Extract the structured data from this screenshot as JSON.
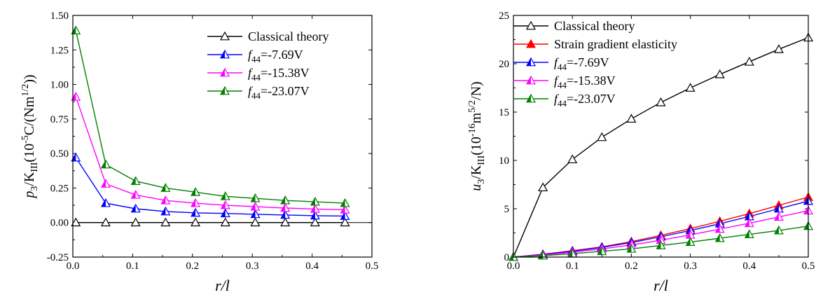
{
  "chart_data": [
    {
      "type": "line",
      "xlabel": "r/l",
      "ylabel": "p3/KIII(10-5C/(Nm1/2))",
      "xlim": [
        0.0,
        0.5
      ],
      "ylim": [
        -0.25,
        1.5
      ],
      "xticks": [
        "0.0",
        "0.1",
        "0.2",
        "0.3",
        "0.4",
        "0.5"
      ],
      "yticks": [
        "-0.25",
        "0.00",
        "0.25",
        "0.50",
        "0.75",
        "1.00",
        "1.25",
        "1.50"
      ],
      "legend_position": "top-right",
      "series": [
        {
          "name": "Classical theory",
          "color": "#000000",
          "marker": "hollow-triangle",
          "x": [
            0.005,
            0.055,
            0.105,
            0.155,
            0.205,
            0.255,
            0.305,
            0.355,
            0.405,
            0.455
          ],
          "y": [
            0.0,
            0.0,
            0.0,
            0.0,
            0.0,
            0.0,
            0.0,
            0.0,
            0.0,
            0.0
          ]
        },
        {
          "name": "f44=-7.69V",
          "color": "#0000ff",
          "marker": "half-filled-triangle",
          "x": [
            0.005,
            0.055,
            0.105,
            0.155,
            0.205,
            0.255,
            0.305,
            0.355,
            0.405,
            0.455
          ],
          "y": [
            0.47,
            0.14,
            0.1,
            0.08,
            0.07,
            0.066,
            0.06,
            0.055,
            0.05,
            0.047
          ]
        },
        {
          "name": "f44=-15.38V",
          "color": "#ff00ff",
          "marker": "half-filled-triangle",
          "x": [
            0.005,
            0.055,
            0.105,
            0.155,
            0.205,
            0.255,
            0.305,
            0.355,
            0.405,
            0.455
          ],
          "y": [
            0.91,
            0.28,
            0.2,
            0.16,
            0.14,
            0.125,
            0.115,
            0.105,
            0.098,
            0.093
          ]
        },
        {
          "name": "f44=-23.07V",
          "color": "#008000",
          "marker": "half-filled-triangle",
          "x": [
            0.005,
            0.055,
            0.105,
            0.155,
            0.205,
            0.255,
            0.305,
            0.355,
            0.405,
            0.455
          ],
          "y": [
            1.39,
            0.42,
            0.3,
            0.25,
            0.22,
            0.19,
            0.175,
            0.16,
            0.15,
            0.14
          ]
        }
      ]
    },
    {
      "type": "line",
      "xlabel": "r/l",
      "ylabel": "u3/KIII(10-16m5/2/N)",
      "xlim": [
        0.0,
        0.5
      ],
      "ylim": [
        0,
        25
      ],
      "xticks": [
        "0.0",
        "0.1",
        "0.2",
        "0.3",
        "0.4",
        "0.5"
      ],
      "yticks": [
        "0",
        "5",
        "10",
        "15",
        "20",
        "25"
      ],
      "legend_position": "top-left",
      "series": [
        {
          "name": "Classical theory",
          "color": "#000000",
          "marker": "hollow-triangle",
          "x": [
            0.0,
            0.05,
            0.1,
            0.15,
            0.2,
            0.25,
            0.3,
            0.35,
            0.4,
            0.45,
            0.5
          ],
          "y": [
            0.0,
            7.2,
            10.1,
            12.4,
            14.3,
            16.0,
            17.5,
            18.9,
            20.2,
            21.5,
            22.7
          ]
        },
        {
          "name": "Strain gradient elasticity",
          "color": "#ff0000",
          "marker": "filled-triangle",
          "x": [
            0.0,
            0.05,
            0.1,
            0.15,
            0.2,
            0.25,
            0.3,
            0.35,
            0.4,
            0.45,
            0.5
          ],
          "y": [
            0.0,
            0.3,
            0.65,
            1.05,
            1.6,
            2.25,
            2.95,
            3.7,
            4.5,
            5.35,
            6.2
          ]
        },
        {
          "name": "f44=-7.69V",
          "color": "#0000ff",
          "marker": "half-filled-triangle",
          "x": [
            0.0,
            0.05,
            0.1,
            0.15,
            0.2,
            0.25,
            0.3,
            0.35,
            0.4,
            0.45,
            0.5
          ],
          "y": [
            0.0,
            0.27,
            0.6,
            1.0,
            1.5,
            2.1,
            2.75,
            3.45,
            4.2,
            5.0,
            5.8
          ]
        },
        {
          "name": "f44=-15.38V",
          "color": "#ff00ff",
          "marker": "half-filled-triangle",
          "x": [
            0.0,
            0.05,
            0.1,
            0.15,
            0.2,
            0.25,
            0.3,
            0.35,
            0.4,
            0.45,
            0.5
          ],
          "y": [
            0.0,
            0.22,
            0.5,
            0.85,
            1.25,
            1.75,
            2.3,
            2.9,
            3.5,
            4.15,
            4.8
          ]
        },
        {
          "name": "f44=-23.07V",
          "color": "#008000",
          "marker": "half-filled-triangle",
          "x": [
            0.0,
            0.05,
            0.1,
            0.15,
            0.2,
            0.25,
            0.3,
            0.35,
            0.4,
            0.45,
            0.5
          ],
          "y": [
            0.0,
            0.15,
            0.35,
            0.6,
            0.85,
            1.2,
            1.55,
            1.95,
            2.35,
            2.75,
            3.2
          ]
        }
      ]
    }
  ]
}
